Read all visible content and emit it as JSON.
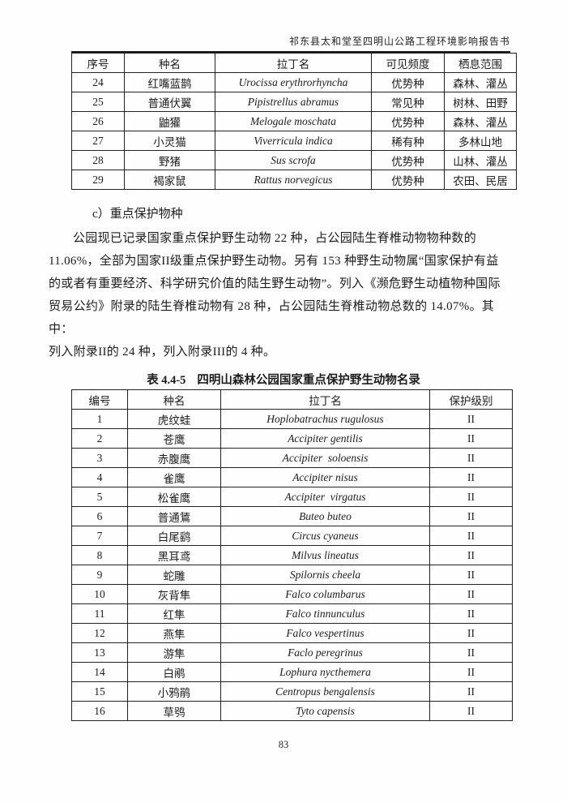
{
  "header": {
    "title": "祁东县太和堂至四明山公路工程环境影响报告书"
  },
  "table1": {
    "columns": [
      "序号",
      "种名",
      "拉丁名",
      "可见频度",
      "栖息范围"
    ],
    "latin_col": 2,
    "rows": [
      [
        "24",
        "红嘴蓝鹊",
        "Urocissa erythrorhyncha",
        "优势种",
        "森林、灌丛"
      ],
      [
        "25",
        "普通伏翼",
        "Pipistrellus abramus",
        "常见种",
        "树林、田野"
      ],
      [
        "26",
        "鼬獾",
        "Melogale moschata",
        "优势种",
        "森林、灌丛"
      ],
      [
        "27",
        "小灵猫",
        "Viverricula indica",
        "稀有种",
        "多林山地"
      ],
      [
        "28",
        "野猪",
        "Sus scrofa",
        "优势种",
        "山林、灌丛"
      ],
      [
        "29",
        "褐家鼠",
        "Rattus norvegicus",
        "优势种",
        "农田、民居"
      ]
    ]
  },
  "section": {
    "heading": "c）重点保护物种",
    "paragraph_lines": [
      "公园现已记录国家重点保护野生动物 22 种，占公园陆生脊椎动物物种数的",
      "11.06%，全部为国家II级重点保护野生动物。另有 153 种野生动物属“国家保护有益",
      "的或者有重要经济、科学研究价值的陆生野生动物”。列入《濒危野生动植物种国际",
      "贸易公约》附录的陆生脊椎动物有 28 种，占公园陆生脊椎动物总数的 14.07%。其中：",
      "列入附录II的 24 种，列入附录III的 4 种。"
    ]
  },
  "table2": {
    "caption_label": "表 4.4-5",
    "caption_title": "四明山森林公园国家重点保护野生动物名录",
    "columns": [
      "编号",
      "种名",
      "拉丁名",
      "保护级别"
    ],
    "latin_col": 2,
    "rows": [
      [
        "1",
        "虎纹蛙",
        "Hoplobatrachus rugulosus",
        "II"
      ],
      [
        "2",
        "苍鹰",
        "Accipiter gentilis",
        "II"
      ],
      [
        "3",
        "赤腹鹰",
        "Accipiter  soloensis",
        "II"
      ],
      [
        "4",
        "雀鹰",
        "Accipiter nisus",
        "II"
      ],
      [
        "5",
        "松雀鹰",
        "Accipiter  virgatus",
        "II"
      ],
      [
        "6",
        "普通鵟",
        "Buteo buteo",
        "II"
      ],
      [
        "7",
        "白尾鹞",
        "Circus cyaneus",
        "II"
      ],
      [
        "8",
        "黑耳鸢",
        "Milvus lineatus",
        "II"
      ],
      [
        "9",
        "蛇雕",
        "Spilornis cheela",
        "II"
      ],
      [
        "10",
        "灰背隼",
        "Falco columbarus",
        "II"
      ],
      [
        "11",
        "红隼",
        "Falco tinnunculus",
        "II"
      ],
      [
        "12",
        "燕隼",
        "Falco vespertinus",
        "II"
      ],
      [
        "13",
        "游隼",
        "Faclo peregrinus",
        "II"
      ],
      [
        "14",
        "白鹇",
        "Lophura nycthemera",
        "II"
      ],
      [
        "15",
        "小鸦鹃",
        "Centropus bengalensis",
        "II"
      ],
      [
        "16",
        "草鸮",
        "Tyto capensis",
        "II"
      ]
    ]
  },
  "page": {
    "number": "83"
  }
}
